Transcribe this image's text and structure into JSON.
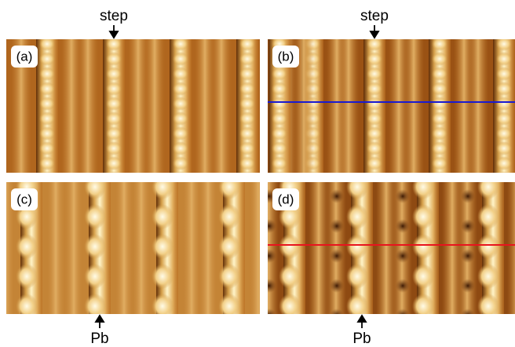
{
  "panels": [
    {
      "label": "(a)"
    },
    {
      "label": "(b)"
    },
    {
      "label": "(c)"
    },
    {
      "label": "(d)"
    }
  ],
  "annotations": [
    {
      "text": "step"
    },
    {
      "text": "step"
    },
    {
      "text": "Pb"
    },
    {
      "text": "Pb"
    }
  ]
}
